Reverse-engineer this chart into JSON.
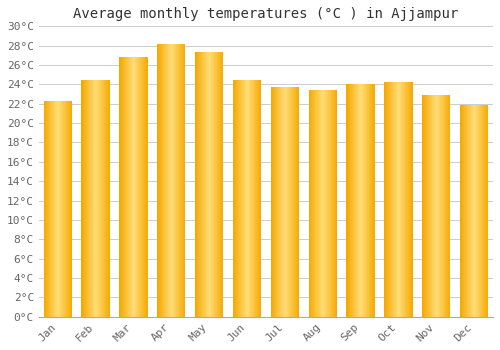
{
  "title": "Average monthly temperatures (°C ) in Ajjampur",
  "months": [
    "Jan",
    "Feb",
    "Mar",
    "Apr",
    "May",
    "Jun",
    "Jul",
    "Aug",
    "Sep",
    "Oct",
    "Nov",
    "Dec"
  ],
  "values": [
    22.3,
    24.5,
    26.8,
    28.2,
    27.3,
    24.5,
    23.7,
    23.4,
    24.0,
    24.2,
    22.9,
    21.9
  ],
  "bar_color_left": "#F5A800",
  "bar_color_center": "#FFD966",
  "bar_color_right": "#F5A800",
  "background_color": "#FFFFFF",
  "grid_color": "#CCCCCC",
  "ylim": [
    0,
    30
  ],
  "ytick_step": 2,
  "title_fontsize": 10,
  "tick_fontsize": 8,
  "font_family": "monospace",
  "bar_width": 0.75
}
